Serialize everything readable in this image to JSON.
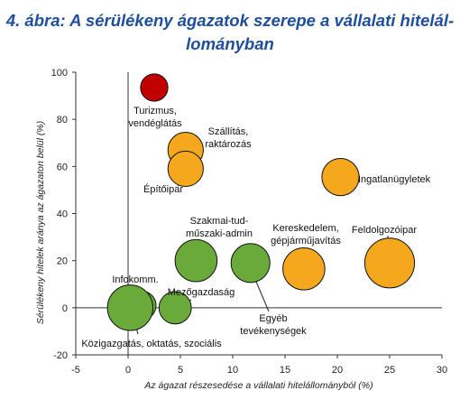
{
  "title_line1": "4. ábra: A sérülékeny ágazatok szerepe a vállalati hitelál-",
  "title_line2": "lományban",
  "chart_data": {
    "type": "scatter",
    "xlabel": "Az ágazat részesedése a vállalati hitelállományból (%)",
    "ylabel": "Sérülékeny hitelek aránya az ágazaton belül (%)",
    "xlim": [
      -5,
      30
    ],
    "ylim": [
      -20,
      100
    ],
    "xticks": [
      "-5",
      "0",
      "5",
      "10",
      "15",
      "20",
      "25",
      "30"
    ],
    "yticks": [
      "-20",
      "0",
      "20",
      "40",
      "60",
      "80",
      "100"
    ],
    "colors": {
      "red": "#c00000",
      "orange": "#f5a71e",
      "green": "#6aaa3a"
    },
    "points": [
      {
        "label": "Turizmus,\nvendéglátás",
        "x": 2.5,
        "y": 93.5,
        "color": "red",
        "size": 0.5
      },
      {
        "label": "Szállítás,\nraktározás",
        "x": 5.5,
        "y": 67,
        "color": "orange",
        "size": 1.2
      },
      {
        "label": "Építőipar",
        "x": 5.5,
        "y": 59,
        "color": "orange",
        "size": 1.2
      },
      {
        "label": "Ingatlanügyletek",
        "x": 20.3,
        "y": 55.5,
        "color": "orange",
        "size": 1.4
      },
      {
        "label": "Kereskedelem,\ngépjárműjavítás",
        "x": 16.8,
        "y": 16.5,
        "color": "orange",
        "size": 2.0
      },
      {
        "label": "Feldolgozóipar",
        "x": 25.0,
        "y": 19,
        "color": "orange",
        "size": 3.2
      },
      {
        "label": "Szakmai-tud-\nműszaki-admin",
        "x": 6.5,
        "y": 20,
        "color": "green",
        "size": 2.0
      },
      {
        "label": "Egyéb\ntevékenységek",
        "x": 11.7,
        "y": 19,
        "color": "green",
        "size": 1.6
      },
      {
        "label": "Infokomm.",
        "x": 1.3,
        "y": 1,
        "color": "green",
        "size": 0.6
      },
      {
        "label": "Mezőgazdaság",
        "x": 4.5,
        "y": 0,
        "color": "green",
        "size": 0.9
      },
      {
        "label": "Közigazgatás, oktatás, szociális",
        "x": 0.2,
        "y": 0,
        "color": "green",
        "size": 2.5
      }
    ]
  }
}
